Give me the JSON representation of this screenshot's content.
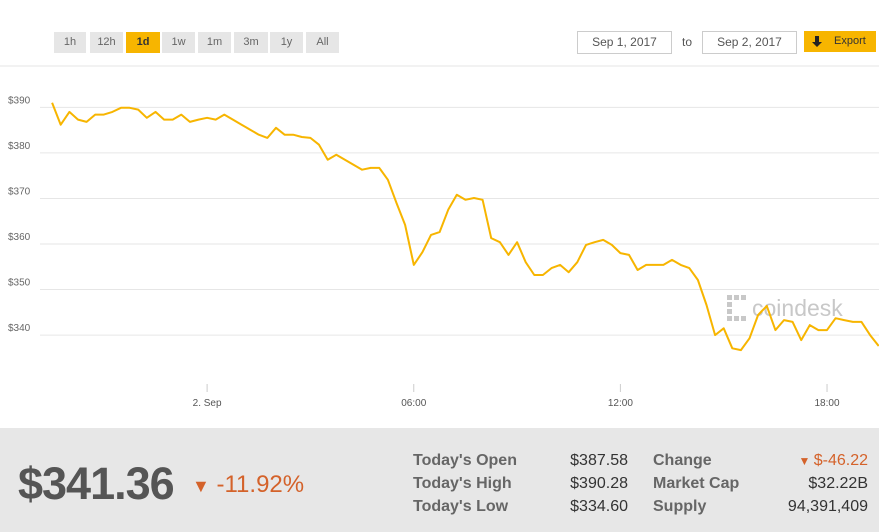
{
  "ranges": [
    "1h",
    "12h",
    "1d",
    "1w",
    "1m",
    "3m",
    "1y",
    "All"
  ],
  "active_range": "1d",
  "date_from": "Sep 1, 2017",
  "date_sep": "to",
  "date_to": "Sep 2, 2017",
  "export": "Export",
  "chart_data": {
    "type": "line",
    "watermark": "coindesk",
    "x": [
      -4.5,
      -4.25,
      -4,
      -3.75,
      -3.5,
      -3.25,
      -3,
      -2.75,
      -2.5,
      -2.25,
      -2,
      -1.75,
      -1.5,
      -1.25,
      -1,
      -0.75,
      -0.5,
      -0.25,
      0,
      0.25,
      0.5,
      0.75,
      1,
      1.25,
      1.5,
      1.75,
      2,
      2.25,
      2.5,
      2.75,
      3,
      3.25,
      3.5,
      3.75,
      4,
      4.25,
      4.5,
      4.75,
      5,
      5.25,
      5.5,
      5.75,
      6,
      6.25,
      6.5,
      6.75,
      7,
      7.25,
      7.5,
      7.75,
      8,
      8.25,
      8.5,
      8.75,
      9,
      9.25,
      9.5,
      9.75,
      10,
      10.25,
      10.5,
      10.75,
      11,
      11.25,
      11.5,
      11.75,
      12,
      12.25,
      12.5,
      12.75,
      13,
      13.25,
      13.5,
      13.75,
      14,
      14.25,
      14.5,
      14.75,
      15,
      15.25,
      15.5,
      15.75,
      16,
      16.25,
      16.5,
      16.75,
      17,
      17.25,
      17.5,
      17.75,
      18,
      18.25,
      18.5,
      18.75,
      19,
      19.25,
      19.5
    ],
    "series": [
      {
        "color": "#f7b500",
        "values": [
          391.0,
          386.2,
          389.0,
          387.3,
          386.8,
          388.4,
          388.4,
          389.0,
          389.9,
          389.9,
          389.5,
          387.7,
          389.0,
          387.3,
          387.3,
          388.4,
          386.8,
          387.3,
          387.7,
          387.3,
          388.4,
          387.3,
          386.2,
          385.1,
          384.0,
          383.3,
          385.5,
          384.0,
          384.0,
          383.5,
          383.3,
          381.8,
          378.5,
          379.6,
          378.5,
          377.4,
          376.3,
          376.7,
          376.7,
          374.1,
          369.0,
          364.2,
          355.4,
          358.2,
          362.0,
          362.6,
          367.5,
          370.8,
          369.7,
          370.1,
          369.7,
          361.3,
          360.4,
          357.6,
          360.4,
          356.0,
          353.2,
          353.2,
          354.7,
          355.4,
          353.8,
          356.0,
          359.8,
          360.4,
          360.9,
          359.8,
          358.0,
          357.6,
          354.3,
          355.4,
          355.4,
          355.4,
          356.5,
          355.4,
          354.7,
          352.1,
          346.6,
          340.0,
          341.5,
          337.1,
          336.7,
          339.3,
          344.4,
          346.4,
          341.1,
          343.3,
          342.9,
          338.9,
          342.2,
          341.1,
          341.1,
          343.7,
          343.3,
          342.9,
          342.9,
          340.0,
          337.6
        ]
      }
    ],
    "xlim": [
      -4.62,
      19.48
    ],
    "xticks": [
      {
        "value": 0,
        "label": "2. Sep"
      },
      {
        "value": 6,
        "label": "06:00"
      },
      {
        "value": 12,
        "label": "12:00"
      },
      {
        "value": 18,
        "label": "18:00"
      }
    ],
    "ylim": [
      329.7,
      398.2
    ],
    "yticks": [
      {
        "value": 340,
        "label": "$340"
      },
      {
        "value": 350,
        "label": "$350"
      },
      {
        "value": 360,
        "label": "$360"
      },
      {
        "value": 370,
        "label": "$370"
      },
      {
        "value": 380,
        "label": "$380"
      },
      {
        "value": 390,
        "label": "$390"
      }
    ],
    "grid": true
  },
  "price": "$341.36",
  "change_pct": "-11.92%",
  "stats": [
    {
      "label": "Today's Open",
      "value": "$387.58"
    },
    {
      "label": "Today's High",
      "value": "$390.28"
    },
    {
      "label": "Today's Low",
      "value": "$334.60"
    },
    {
      "label": "Change",
      "value": "$-46.22"
    },
    {
      "label": "Market Cap",
      "value": "$32.22B"
    },
    {
      "label": "Supply",
      "value": "94,391,409"
    }
  ]
}
